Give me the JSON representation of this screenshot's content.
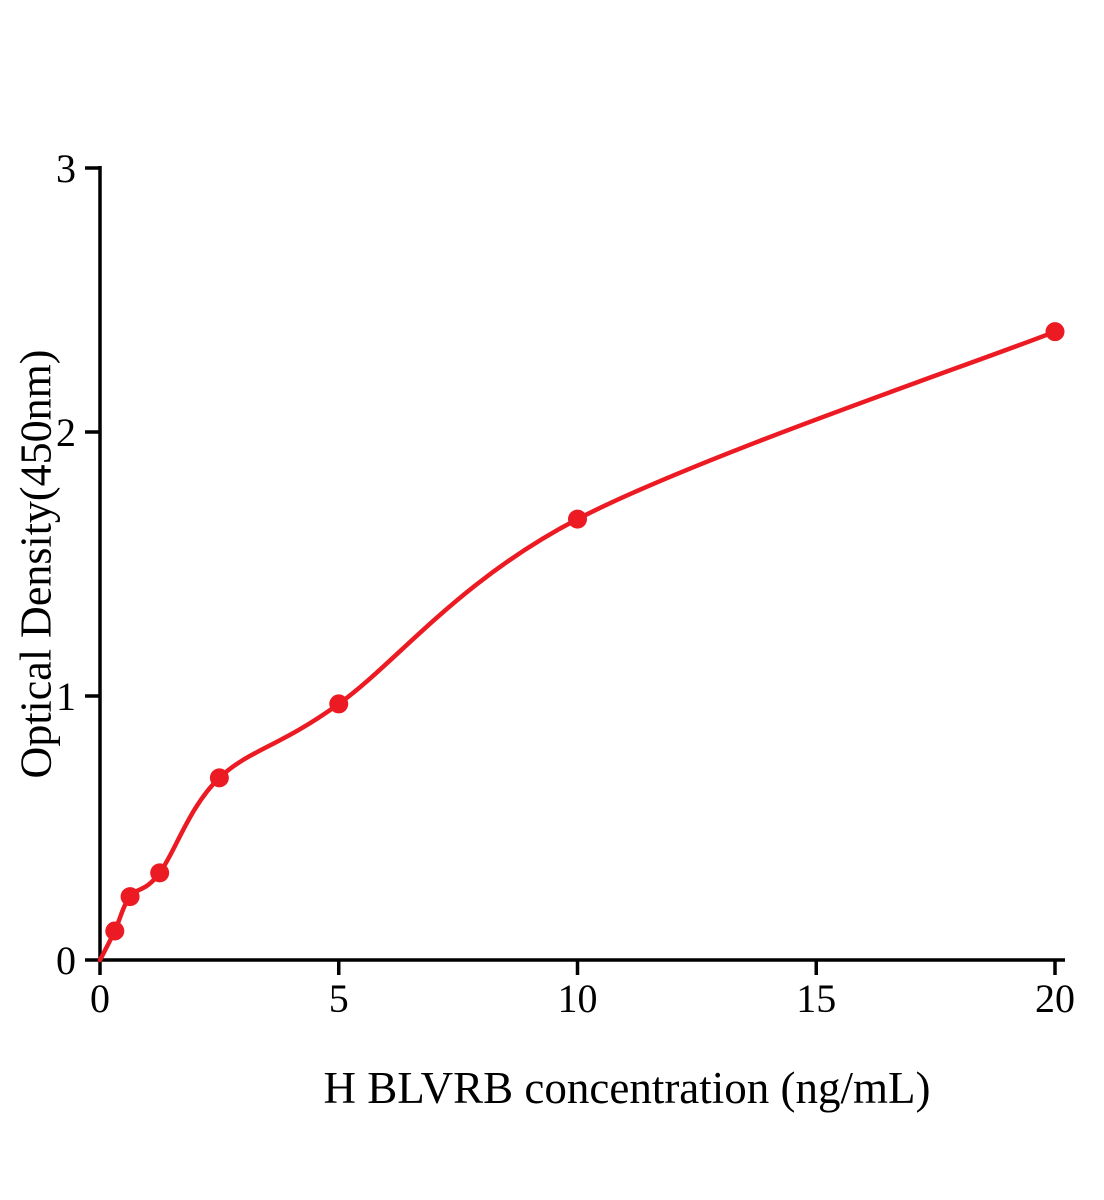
{
  "chart_data": {
    "type": "scatter",
    "title": "",
    "xlabel": "H BLVRB concentration (ng/mL)",
    "ylabel": "Optical Density(450nm)",
    "x": [
      0.31,
      0.63,
      1.25,
      2.5,
      5,
      10,
      20
    ],
    "y": [
      0.11,
      0.24,
      0.33,
      0.69,
      0.97,
      1.67,
      2.38
    ],
    "curve": "smooth fit through origin",
    "xlim": [
      0,
      20
    ],
    "ylim": [
      0,
      3
    ],
    "xticks": [
      0,
      5,
      10,
      15,
      20
    ],
    "yticks": [
      0,
      1,
      2,
      3
    ],
    "grid": false,
    "legend": null,
    "colors": {
      "marker": "#ec1b23",
      "line": "#ec1b23",
      "axis": "#000000"
    }
  }
}
